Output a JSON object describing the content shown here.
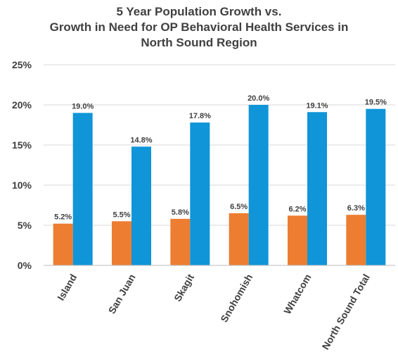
{
  "chart_data": {
    "type": "bar",
    "title_lines": [
      "5 Year Population Growth vs.",
      "Growth in Need for OP Behavioral Health Services  in",
      "North Sound Region"
    ],
    "categories": [
      "Island",
      "San Juan",
      "Skagit",
      "Snohomish",
      "Whatcom",
      "North Sound Total"
    ],
    "series": [
      {
        "color": "#ED7D31",
        "values": [
          5.2,
          5.5,
          5.8,
          6.5,
          6.2,
          6.3
        ],
        "labels": [
          "5.2%",
          "5.5%",
          "5.8%",
          "6.5%",
          "6.2%",
          "6.3%"
        ]
      },
      {
        "color": "#0F95D8",
        "values": [
          19.0,
          14.8,
          17.8,
          20.0,
          19.1,
          19.5
        ],
        "labels": [
          "19.0%",
          "14.8%",
          "17.8%",
          "20.0%",
          "19.1%",
          "19.5%"
        ]
      }
    ],
    "ylim": [
      0,
      25
    ],
    "yticks": [
      0,
      5,
      10,
      15,
      20,
      25
    ],
    "ytick_labels": [
      "0%",
      "5%",
      "10%",
      "15%",
      "20%",
      "25%"
    ],
    "grid": true,
    "legend": "none"
  }
}
